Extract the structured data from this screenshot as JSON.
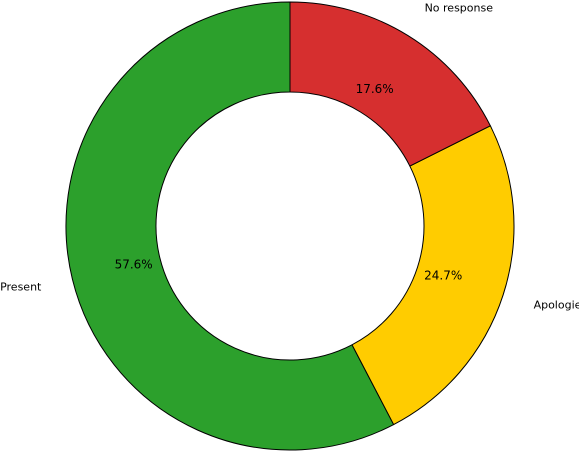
{
  "chart_data": {
    "type": "pie",
    "donut": true,
    "title": "",
    "start_angle_deg": 90,
    "direction": "counterclockwise",
    "slices": [
      {
        "label": "Present",
        "value": 57.6,
        "pct_label": "57.6%",
        "color": "#2ca02c"
      },
      {
        "label": "Apologies",
        "value": 24.7,
        "pct_label": "24.7%",
        "color": "#ffcc00"
      },
      {
        "label": "No response",
        "value": 17.6,
        "pct_label": "17.6%",
        "color": "#d62f2f"
      }
    ]
  }
}
